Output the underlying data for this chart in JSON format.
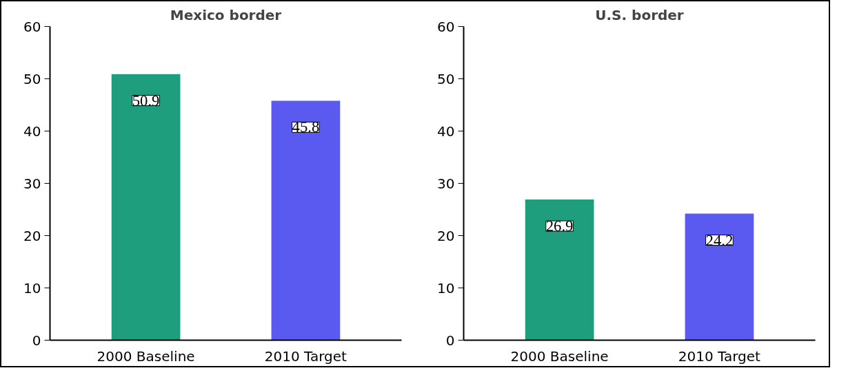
{
  "chart_data": [
    {
      "type": "bar",
      "title": "Mexico border",
      "categories": [
        "2000 Baseline",
        "2010 Target"
      ],
      "values": [
        50.9,
        45.8
      ],
      "colors": [
        "#1f9e7e",
        "#5a5af0"
      ],
      "ylim": [
        0,
        60
      ],
      "yticks": [
        0,
        10,
        20,
        30,
        40,
        50,
        60
      ],
      "grid": false,
      "data_labels": true
    },
    {
      "type": "bar",
      "title": "U.S. border",
      "categories": [
        "2000 Baseline",
        "2010 Target"
      ],
      "values": [
        26.9,
        24.2
      ],
      "colors": [
        "#1f9e7e",
        "#5a5af0"
      ],
      "ylim": [
        0,
        60
      ],
      "yticks": [
        0,
        10,
        20,
        30,
        40,
        50,
        60
      ],
      "grid": false,
      "data_labels": true
    }
  ]
}
